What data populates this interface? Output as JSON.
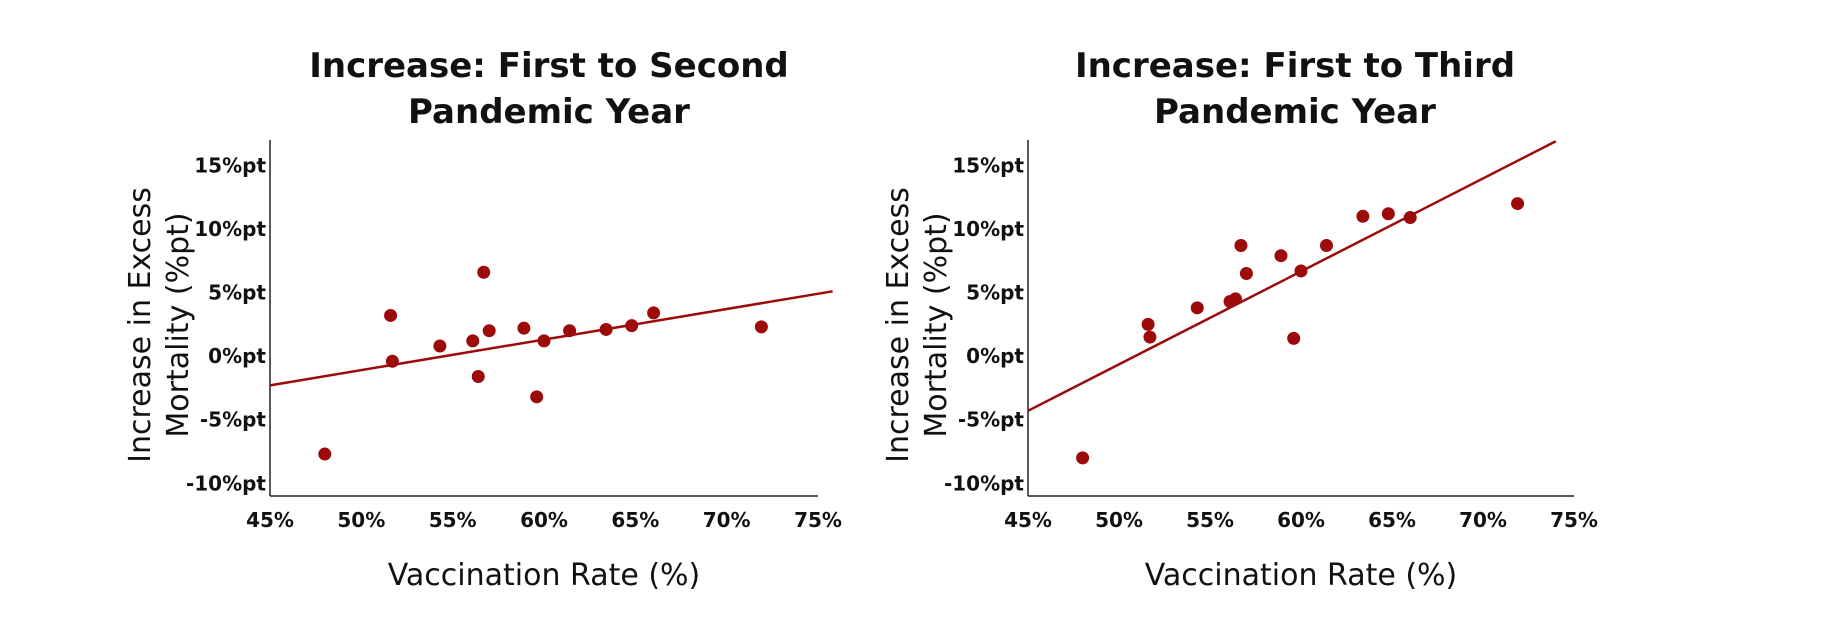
{
  "chart_data": [
    {
      "type": "scatter",
      "title": "Increase: First to Second Pandemic Year",
      "title_lines": [
        "Increase: First to Second",
        "Pandemic Year"
      ],
      "xlabel": "Vaccination Rate (%)",
      "ylabel": "Increase in Excess Mortality (%pt)",
      "ylabel_lines": [
        "Increase in Excess",
        "Mortality (%pt)"
      ],
      "xlim": [
        45,
        75
      ],
      "ylim": [
        -11,
        17
      ],
      "x_ticks": [
        45,
        50,
        55,
        60,
        65,
        70,
        75
      ],
      "x_tick_labels": [
        "45%",
        "50%",
        "55%",
        "60%",
        "65%",
        "70%",
        "75%"
      ],
      "y_ticks": [
        -10,
        -5,
        0,
        5,
        10,
        15
      ],
      "y_tick_labels": [
        "-10%pt",
        "-5%pt",
        "0%pt",
        "5%pt",
        "10%pt",
        "15%pt"
      ],
      "grid": false,
      "color": "#9c0a0a",
      "points": [
        {
          "x": 48.0,
          "y": -7.7
        },
        {
          "x": 51.6,
          "y": 3.2
        },
        {
          "x": 51.7,
          "y": -0.4
        },
        {
          "x": 54.3,
          "y": 0.8
        },
        {
          "x": 56.1,
          "y": 1.2
        },
        {
          "x": 56.4,
          "y": -1.6
        },
        {
          "x": 56.7,
          "y": 6.6
        },
        {
          "x": 57.0,
          "y": 2.0
        },
        {
          "x": 58.9,
          "y": 2.2
        },
        {
          "x": 59.6,
          "y": -3.2
        },
        {
          "x": 60.0,
          "y": 1.2
        },
        {
          "x": 61.4,
          "y": 2.0
        },
        {
          "x": 63.4,
          "y": 2.1
        },
        {
          "x": 64.8,
          "y": 2.4
        },
        {
          "x": 66.0,
          "y": 3.4
        },
        {
          "x": 71.9,
          "y": 2.3
        }
      ],
      "trendline": {
        "x": [
          45,
          75.8
        ],
        "y": [
          -2.3,
          5.1
        ]
      }
    },
    {
      "type": "scatter",
      "title": "Increase: First to Third Pandemic Year",
      "title_lines": [
        "Increase: First to Third",
        "Pandemic Year"
      ],
      "xlabel": "Vaccination Rate (%)",
      "ylabel": "Increase in Excess Mortality (%pt)",
      "ylabel_lines": [
        "Increase in Excess",
        "Mortality (%pt)"
      ],
      "xlim": [
        45,
        75
      ],
      "ylim": [
        -11,
        17
      ],
      "x_ticks": [
        45,
        50,
        55,
        60,
        65,
        70,
        75
      ],
      "x_tick_labels": [
        "45%",
        "50%",
        "55%",
        "60%",
        "65%",
        "70%",
        "75%"
      ],
      "y_ticks": [
        -10,
        -5,
        0,
        5,
        10,
        15
      ],
      "y_tick_labels": [
        "-10%pt",
        "-5%pt",
        "0%pt",
        "5%pt",
        "10%pt",
        "15%pt"
      ],
      "grid": false,
      "color": "#9c0a0a",
      "points": [
        {
          "x": 48.0,
          "y": -8.0
        },
        {
          "x": 51.6,
          "y": 2.5
        },
        {
          "x": 51.7,
          "y": 1.5
        },
        {
          "x": 54.3,
          "y": 3.8
        },
        {
          "x": 56.1,
          "y": 4.3
        },
        {
          "x": 56.4,
          "y": 4.5
        },
        {
          "x": 56.7,
          "y": 8.7
        },
        {
          "x": 57.0,
          "y": 6.5
        },
        {
          "x": 58.9,
          "y": 7.9
        },
        {
          "x": 59.6,
          "y": 1.4
        },
        {
          "x": 60.0,
          "y": 6.7
        },
        {
          "x": 61.4,
          "y": 8.7
        },
        {
          "x": 63.4,
          "y": 11.0
        },
        {
          "x": 64.8,
          "y": 11.2
        },
        {
          "x": 66.0,
          "y": 10.9
        },
        {
          "x": 71.9,
          "y": 12.0
        }
      ],
      "trendline": {
        "x": [
          45,
          74.0
        ],
        "y": [
          -4.3,
          16.9
        ]
      }
    }
  ]
}
